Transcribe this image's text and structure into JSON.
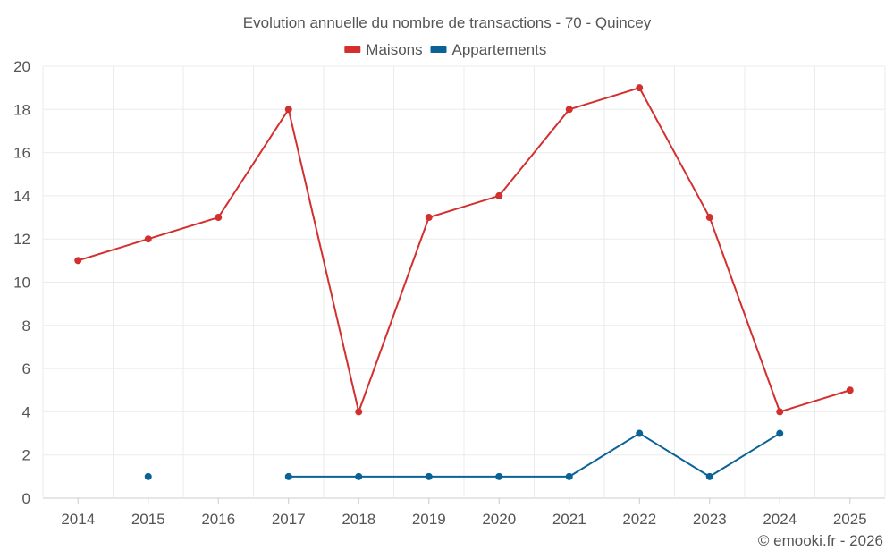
{
  "chart_data": {
    "type": "line",
    "title": "Evolution annuelle du nombre de transactions - 70 - Quincey",
    "xlabel": "",
    "ylabel": "",
    "categories": [
      "2014",
      "2015",
      "2016",
      "2017",
      "2018",
      "2019",
      "2020",
      "2021",
      "2022",
      "2023",
      "2024",
      "2025"
    ],
    "ylim": [
      0,
      20
    ],
    "yticks": [
      0,
      2,
      4,
      6,
      8,
      10,
      12,
      14,
      16,
      18,
      20
    ],
    "grid": true,
    "legend_position": "top-center",
    "series": [
      {
        "name": "Maisons",
        "color": "#d32f2f",
        "values": [
          11,
          12,
          13,
          18,
          4,
          13,
          14,
          18,
          19,
          13,
          4,
          5
        ]
      },
      {
        "name": "Appartements",
        "color": "#0a6296",
        "values": [
          null,
          1,
          null,
          1,
          1,
          1,
          1,
          1,
          3,
          1,
          3,
          null
        ]
      }
    ]
  },
  "credit": "© emooki.fr - 2026"
}
